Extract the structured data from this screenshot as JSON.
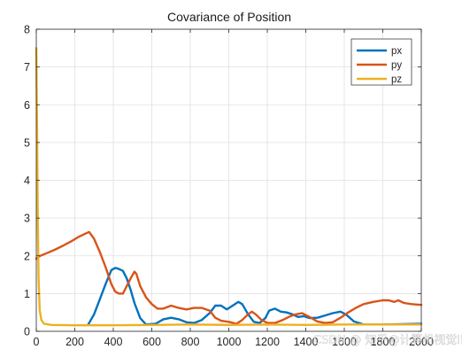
{
  "chart_data": {
    "type": "line",
    "title": "Covariance of Position",
    "xlabel": "",
    "ylabel": "",
    "xlim": [
      0,
      2000
    ],
    "ylim": [
      0,
      8
    ],
    "xticks": [
      "0",
      "200",
      "400",
      "600",
      "800",
      "1000",
      "1200",
      "1400",
      "1600",
      "1800",
      "2000"
    ],
    "yticks": [
      "0",
      "1",
      "2",
      "3",
      "4",
      "5",
      "6",
      "7",
      "8"
    ],
    "grid": true,
    "legend_position": "top-right",
    "series": [
      {
        "name": "px",
        "color": "#0072BD",
        "points": [
          [
            270,
            0.18
          ],
          [
            300,
            0.45
          ],
          [
            330,
            0.85
          ],
          [
            360,
            1.25
          ],
          [
            390,
            1.62
          ],
          [
            410,
            1.68
          ],
          [
            430,
            1.65
          ],
          [
            450,
            1.6
          ],
          [
            470,
            1.4
          ],
          [
            490,
            1.1
          ],
          [
            510,
            0.75
          ],
          [
            540,
            0.35
          ],
          [
            570,
            0.18
          ],
          [
            620,
            0.2
          ],
          [
            660,
            0.32
          ],
          [
            700,
            0.36
          ],
          [
            740,
            0.32
          ],
          [
            780,
            0.24
          ],
          [
            820,
            0.22
          ],
          [
            860,
            0.3
          ],
          [
            900,
            0.48
          ],
          [
            930,
            0.68
          ],
          [
            960,
            0.68
          ],
          [
            990,
            0.58
          ],
          [
            1020,
            0.68
          ],
          [
            1050,
            0.78
          ],
          [
            1070,
            0.72
          ],
          [
            1100,
            0.45
          ],
          [
            1130,
            0.25
          ],
          [
            1160,
            0.22
          ],
          [
            1190,
            0.35
          ],
          [
            1210,
            0.55
          ],
          [
            1240,
            0.6
          ],
          [
            1270,
            0.52
          ],
          [
            1300,
            0.5
          ],
          [
            1330,
            0.45
          ],
          [
            1360,
            0.38
          ],
          [
            1390,
            0.4
          ],
          [
            1420,
            0.35
          ],
          [
            1460,
            0.36
          ],
          [
            1500,
            0.42
          ],
          [
            1540,
            0.48
          ],
          [
            1580,
            0.52
          ],
          [
            1610,
            0.44
          ],
          [
            1650,
            0.26
          ],
          [
            1700,
            0.18
          ],
          [
            1800,
            0.18
          ],
          [
            1900,
            0.19
          ],
          [
            2000,
            0.2
          ]
        ]
      },
      {
        "name": "py",
        "color": "#D95319",
        "points": [
          [
            0,
            1.92
          ],
          [
            20,
            2.0
          ],
          [
            60,
            2.08
          ],
          [
            100,
            2.17
          ],
          [
            140,
            2.27
          ],
          [
            180,
            2.38
          ],
          [
            220,
            2.5
          ],
          [
            260,
            2.6
          ],
          [
            275,
            2.63
          ],
          [
            300,
            2.45
          ],
          [
            330,
            2.1
          ],
          [
            360,
            1.7
          ],
          [
            390,
            1.25
          ],
          [
            410,
            1.05
          ],
          [
            430,
            1.0
          ],
          [
            450,
            1.0
          ],
          [
            470,
            1.2
          ],
          [
            490,
            1.4
          ],
          [
            510,
            1.58
          ],
          [
            520,
            1.52
          ],
          [
            540,
            1.2
          ],
          [
            570,
            0.9
          ],
          [
            600,
            0.72
          ],
          [
            630,
            0.6
          ],
          [
            660,
            0.6
          ],
          [
            700,
            0.68
          ],
          [
            740,
            0.62
          ],
          [
            780,
            0.58
          ],
          [
            820,
            0.62
          ],
          [
            860,
            0.62
          ],
          [
            900,
            0.55
          ],
          [
            930,
            0.36
          ],
          [
            960,
            0.28
          ],
          [
            1000,
            0.25
          ],
          [
            1040,
            0.2
          ],
          [
            1070,
            0.3
          ],
          [
            1100,
            0.45
          ],
          [
            1120,
            0.52
          ],
          [
            1140,
            0.45
          ],
          [
            1170,
            0.3
          ],
          [
            1200,
            0.22
          ],
          [
            1240,
            0.22
          ],
          [
            1280,
            0.3
          ],
          [
            1320,
            0.4
          ],
          [
            1350,
            0.45
          ],
          [
            1380,
            0.48
          ],
          [
            1420,
            0.38
          ],
          [
            1460,
            0.26
          ],
          [
            1500,
            0.22
          ],
          [
            1540,
            0.24
          ],
          [
            1580,
            0.36
          ],
          [
            1620,
            0.5
          ],
          [
            1660,
            0.62
          ],
          [
            1700,
            0.72
          ],
          [
            1750,
            0.78
          ],
          [
            1800,
            0.82
          ],
          [
            1830,
            0.82
          ],
          [
            1860,
            0.78
          ],
          [
            1880,
            0.82
          ],
          [
            1910,
            0.75
          ],
          [
            1950,
            0.72
          ],
          [
            2000,
            0.7
          ]
        ]
      },
      {
        "name": "pz",
        "color": "#EDB120",
        "points": [
          [
            0,
            7.5
          ],
          [
            4,
            5.4
          ],
          [
            8,
            3.0
          ],
          [
            12,
            1.4
          ],
          [
            18,
            0.55
          ],
          [
            26,
            0.3
          ],
          [
            40,
            0.2
          ],
          [
            80,
            0.17
          ],
          [
            200,
            0.16
          ],
          [
            400,
            0.16
          ],
          [
            600,
            0.17
          ],
          [
            800,
            0.18
          ],
          [
            1000,
            0.17
          ],
          [
            1200,
            0.18
          ],
          [
            1400,
            0.17
          ],
          [
            1600,
            0.18
          ],
          [
            1800,
            0.18
          ],
          [
            2000,
            0.18
          ]
        ]
      }
    ]
  },
  "watermark": "CSDN @ 知乎@计算机视觉life",
  "colors": {
    "background": "#ffffff",
    "axis": "#262626",
    "grid": "#e0e0e0"
  }
}
